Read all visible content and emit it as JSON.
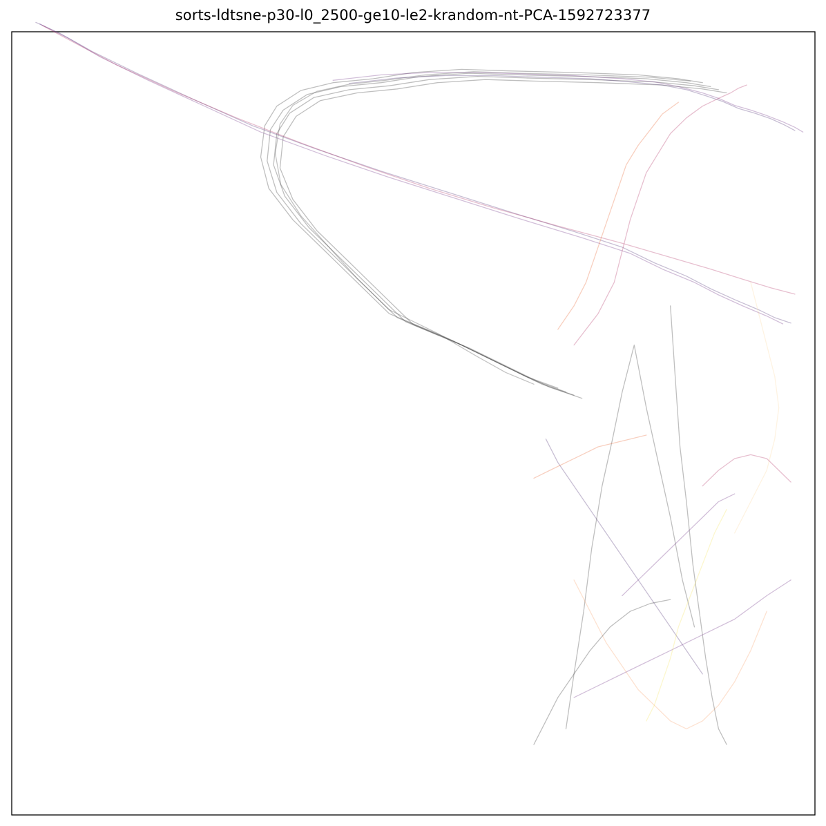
{
  "chart_data": {
    "type": "line",
    "title": "sorts-ldtsne-p30-l0_2500-ge10-le2-krandom-nt-PCA-1592723377",
    "xlabel": "",
    "ylabel": "",
    "xticks": [],
    "yticks": [],
    "xlim": [
      0,
      1000
    ],
    "ylim": [
      0,
      1000
    ],
    "grid": false,
    "legend": false,
    "colormap": "magma",
    "line_alpha": 0.3,
    "series": [
      {
        "color": "#2b2b2b",
        "x": [
          680,
          640,
          600,
          540,
          470,
          430,
          390,
          350,
          320,
          310,
          315,
          330,
          360,
          400,
          450,
          500,
          560,
          620,
          700,
          780,
          830,
          860
        ],
        "y": [
          545,
          560,
          580,
          610,
          640,
          680,
          720,
          760,
          800,
          840,
          880,
          905,
          925,
          935,
          940,
          948,
          952,
          950,
          948,
          945,
          940,
          935
        ]
      },
      {
        "color": "#2b2b2b",
        "x": [
          690,
          650,
          610,
          550,
          480,
          440,
          400,
          360,
          330,
          318,
          322,
          338,
          368,
          410,
          460,
          510,
          570,
          630,
          710,
          790,
          840,
          870
        ],
        "y": [
          540,
          555,
          575,
          605,
          635,
          675,
          715,
          755,
          795,
          835,
          875,
          900,
          920,
          930,
          935,
          943,
          947,
          945,
          943,
          940,
          935,
          930
        ]
      },
      {
        "color": "#2b2b2b",
        "x": [
          700,
          660,
          620,
          560,
          490,
          450,
          410,
          370,
          340,
          326,
          330,
          346,
          376,
          420,
          470,
          520,
          580,
          640,
          720,
          800,
          850,
          880
        ],
        "y": [
          536,
          550,
          570,
          600,
          630,
          670,
          710,
          750,
          790,
          830,
          870,
          896,
          916,
          926,
          931,
          939,
          943,
          941,
          939,
          936,
          931,
          926
        ]
      },
      {
        "color": "#2b2b2b",
        "x": [
          710,
          670,
          630,
          570,
          500,
          460,
          420,
          380,
          350,
          334,
          338,
          354,
          384,
          430,
          480,
          530,
          590,
          650,
          730,
          810,
          860,
          890
        ],
        "y": [
          532,
          546,
          566,
          596,
          626,
          666,
          706,
          746,
          786,
          826,
          866,
          892,
          912,
          922,
          927,
          935,
          939,
          937,
          935,
          932,
          927,
          922
        ]
      },
      {
        "color": "#3a3a3a",
        "x": [
          650,
          615,
          580,
          530,
          470,
          430,
          395,
          360,
          335,
          328,
          334,
          350,
          380,
          420,
          465,
          515,
          575,
          635,
          715,
          795,
          845
        ],
        "y": [
          550,
          565,
          585,
          615,
          645,
          685,
          725,
          765,
          805,
          845,
          882,
          906,
          924,
          933,
          938,
          945,
          949,
          947,
          945,
          942,
          937
        ]
      },
      {
        "color": "#4a2a70",
        "x": [
          30,
          60,
          100,
          160,
          230,
          300,
          380,
          460,
          540,
          620,
          700,
          760,
          800,
          840,
          870,
          900,
          930,
          950,
          970
        ],
        "y": [
          1012,
          998,
          975,
          945,
          912,
          880,
          850,
          822,
          796,
          770,
          745,
          725,
          705,
          688,
          672,
          658,
          645,
          635,
          628
        ]
      },
      {
        "color": "#6a2a80",
        "x": [
          35,
          70,
          110,
          170,
          240,
          310,
          390,
          470,
          550,
          630,
          710,
          770,
          810,
          850,
          880,
          910,
          940,
          960
        ],
        "y": [
          1010,
          992,
          968,
          938,
          905,
          872,
          842,
          814,
          788,
          762,
          737,
          717,
          697,
          680,
          664,
          650,
          637,
          627
        ]
      },
      {
        "color": "#b02a60",
        "x": [
          38,
          80,
          130,
          200,
          280,
          360,
          440,
          520,
          600,
          680,
          760,
          820,
          870,
          910,
          945,
          975
        ],
        "y": [
          1008,
          985,
          958,
          925,
          890,
          858,
          828,
          800,
          775,
          752,
          730,
          712,
          697,
          684,
          673,
          665
        ]
      },
      {
        "color": "#6a2a80",
        "x": [
          400,
          460,
          520,
          580,
          640,
          700,
          760,
          800,
          830,
          860,
          880,
          900,
          920,
          940,
          960,
          975,
          985
        ],
        "y": [
          938,
          945,
          948,
          948,
          946,
          944,
          940,
          936,
          930,
          922,
          915,
          906,
          900,
          893,
          885,
          878,
          872
        ]
      },
      {
        "color": "#4a2a70",
        "x": [
          420,
          480,
          540,
          600,
          660,
          720,
          770,
          810,
          840,
          865,
          885,
          905,
          925,
          945,
          962,
          975
        ],
        "y": [
          934,
          941,
          944,
          944,
          942,
          940,
          936,
          932,
          926,
          918,
          911,
          902,
          896,
          889,
          881,
          874
        ]
      },
      {
        "color": "#b02a60",
        "x": [
          700,
          730,
          750,
          760,
          770,
          780,
          790,
          805,
          820,
          840,
          860,
          880,
          895,
          905,
          915
        ],
        "y": [
          600,
          640,
          680,
          720,
          760,
          790,
          820,
          845,
          870,
          890,
          905,
          915,
          922,
          928,
          932
        ]
      },
      {
        "color": "#e8602c",
        "x": [
          680,
          700,
          715,
          725,
          735,
          745,
          755,
          765,
          780,
          795,
          810,
          830
        ],
        "y": [
          620,
          650,
          680,
          710,
          740,
          770,
          800,
          830,
          855,
          875,
          895,
          910
        ]
      },
      {
        "color": "#4a2a70",
        "x": [
          665,
          680,
          700,
          720,
          740,
          760,
          780,
          800,
          820,
          840,
          860
        ],
        "y": [
          480,
          450,
          420,
          390,
          360,
          330,
          300,
          270,
          240,
          210,
          180
        ]
      },
      {
        "color": "#2b2b2b",
        "x": [
          690,
          700,
          712,
          722,
          735,
          748,
          760,
          775,
          790,
          805,
          820,
          835,
          850
        ],
        "y": [
          110,
          180,
          260,
          340,
          420,
          480,
          540,
          600,
          520,
          450,
          380,
          300,
          240
        ]
      },
      {
        "color": "#2b2b2b",
        "x": [
          820,
          826,
          832,
          840,
          848,
          856,
          864,
          872,
          880,
          890
        ],
        "y": [
          650,
          560,
          470,
          400,
          320,
          260,
          200,
          150,
          110,
          90
        ]
      },
      {
        "color": "#6a2a80",
        "x": [
          700,
          740,
          780,
          820,
          860,
          900,
          940,
          970
        ],
        "y": [
          150,
          170,
          190,
          210,
          230,
          250,
          280,
          300
        ]
      },
      {
        "color": "#f8a068",
        "x": [
          700,
          720,
          740,
          760,
          780,
          800,
          820,
          840,
          860,
          880,
          900,
          920,
          940
        ],
        "y": [
          300,
          260,
          220,
          190,
          160,
          140,
          120,
          110,
          120,
          140,
          170,
          210,
          260
        ]
      },
      {
        "color": "#fcd7a0",
        "x": [
          900,
          920,
          940,
          950,
          955,
          950,
          940,
          930,
          920
        ],
        "y": [
          360,
          400,
          440,
          480,
          520,
          560,
          600,
          640,
          680
        ]
      },
      {
        "color": "#f6e45c",
        "x": [
          790,
          800,
          810,
          820,
          830,
          845,
          860,
          875,
          890
        ],
        "y": [
          120,
          140,
          170,
          200,
          240,
          280,
          320,
          360,
          390
        ]
      },
      {
        "color": "#b02a60",
        "x": [
          860,
          880,
          900,
          920,
          940,
          955,
          965,
          970
        ],
        "y": [
          420,
          440,
          455,
          460,
          455,
          440,
          430,
          425
        ]
      },
      {
        "color": "#6a2a80",
        "x": [
          760,
          780,
          800,
          820,
          840,
          860,
          880,
          900
        ],
        "y": [
          280,
          300,
          320,
          340,
          360,
          380,
          400,
          410
        ]
      },
      {
        "color": "#e8602c",
        "x": [
          650,
          670,
          690,
          710,
          730,
          750,
          770,
          790
        ],
        "y": [
          430,
          440,
          450,
          460,
          470,
          475,
          480,
          485
        ]
      },
      {
        "color": "#2b2b2b",
        "x": [
          650,
          665,
          680,
          700,
          720,
          745,
          770,
          795,
          820
        ],
        "y": [
          90,
          120,
          150,
          180,
          210,
          240,
          260,
          270,
          275
        ]
      }
    ]
  }
}
